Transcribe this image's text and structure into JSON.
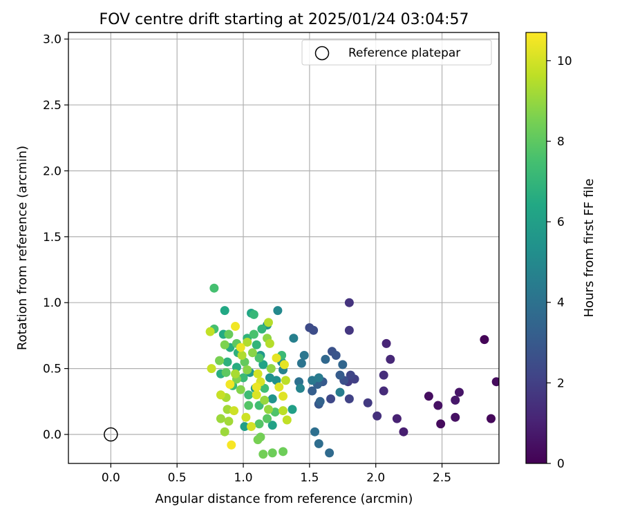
{
  "chart_data": {
    "type": "scatter",
    "title": "FOV centre drift starting at 2025/01/24 03:04:57",
    "xlabel": "Angular distance from reference (arcmin)",
    "ylabel": "Rotation from reference (arcmin)",
    "xlim": [
      -0.32,
      2.93
    ],
    "ylim": [
      -0.22,
      3.05
    ],
    "xticks": [
      0.0,
      0.5,
      1.0,
      1.5,
      2.0,
      2.5
    ],
    "xtick_labels": [
      "0.0",
      "0.5",
      "1.0",
      "1.5",
      "2.0",
      "2.5"
    ],
    "yticks": [
      0.0,
      0.5,
      1.0,
      1.5,
      2.0,
      2.5,
      3.0
    ],
    "ytick_labels": [
      "0.0",
      "0.5",
      "1.0",
      "1.5",
      "2.0",
      "2.5",
      "3.0"
    ],
    "grid": true,
    "legend": {
      "position": "top-right",
      "entries": [
        "Reference platepar"
      ]
    },
    "colorbar": {
      "label": "Hours from first FF file",
      "min": 0,
      "max": 10.7,
      "ticks": [
        0,
        2,
        4,
        6,
        8,
        10
      ],
      "tick_labels": [
        "0",
        "2",
        "4",
        "6",
        "8",
        "10"
      ],
      "colormap": "viridis"
    },
    "reference_point": {
      "x": 0.0,
      "y": 0.0,
      "name": "Reference platepar"
    },
    "series": [
      {
        "points": [
          {
            "x": 2.82,
            "y": 0.72,
            "c": 0.1
          },
          {
            "x": 2.87,
            "y": 0.12,
            "c": 0.2
          },
          {
            "x": 2.91,
            "y": 0.4,
            "c": 0.3
          },
          {
            "x": 2.49,
            "y": 0.08,
            "c": 0.3
          },
          {
            "x": 2.4,
            "y": 0.29,
            "c": 0.4
          },
          {
            "x": 2.47,
            "y": 0.22,
            "c": 0.5
          },
          {
            "x": 2.6,
            "y": 0.13,
            "c": 0.5
          },
          {
            "x": 2.63,
            "y": 0.32,
            "c": 0.6
          },
          {
            "x": 2.6,
            "y": 0.26,
            "c": 0.7
          },
          {
            "x": 2.21,
            "y": 0.02,
            "c": 0.9
          },
          {
            "x": 2.16,
            "y": 0.12,
            "c": 1.0
          },
          {
            "x": 2.08,
            "y": 0.69,
            "c": 1.1
          },
          {
            "x": 2.11,
            "y": 0.57,
            "c": 1.2
          },
          {
            "x": 2.06,
            "y": 0.33,
            "c": 1.3
          },
          {
            "x": 2.06,
            "y": 0.45,
            "c": 1.4
          },
          {
            "x": 2.01,
            "y": 0.14,
            "c": 1.5
          },
          {
            "x": 1.8,
            "y": 1.0,
            "c": 1.6
          },
          {
            "x": 1.8,
            "y": 0.79,
            "c": 1.7
          },
          {
            "x": 1.94,
            "y": 0.24,
            "c": 1.8
          },
          {
            "x": 1.79,
            "y": 0.4,
            "c": 1.9
          },
          {
            "x": 1.84,
            "y": 0.42,
            "c": 2.0
          },
          {
            "x": 1.8,
            "y": 0.27,
            "c": 2.1
          },
          {
            "x": 1.81,
            "y": 0.45,
            "c": 2.2
          },
          {
            "x": 1.66,
            "y": 0.27,
            "c": 2.3
          },
          {
            "x": 1.5,
            "y": 0.81,
            "c": 2.4
          },
          {
            "x": 1.53,
            "y": 0.79,
            "c": 2.5
          },
          {
            "x": 1.76,
            "y": 0.41,
            "c": 2.6
          },
          {
            "x": 1.67,
            "y": 0.63,
            "c": 2.7
          },
          {
            "x": 1.7,
            "y": 0.6,
            "c": 2.8
          },
          {
            "x": 1.57,
            "y": 0.23,
            "c": 2.9
          },
          {
            "x": 1.6,
            "y": 0.4,
            "c": 3.0
          },
          {
            "x": 1.73,
            "y": 0.45,
            "c": 3.1
          },
          {
            "x": 1.52,
            "y": 0.33,
            "c": 3.2
          },
          {
            "x": 1.56,
            "y": 0.38,
            "c": 3.3
          },
          {
            "x": 1.58,
            "y": 0.25,
            "c": 3.4
          },
          {
            "x": 1.75,
            "y": 0.53,
            "c": 3.5
          },
          {
            "x": 1.62,
            "y": 0.57,
            "c": 3.6
          },
          {
            "x": 1.65,
            "y": -0.14,
            "c": 3.7
          },
          {
            "x": 1.57,
            "y": -0.07,
            "c": 3.8
          },
          {
            "x": 1.54,
            "y": 0.02,
            "c": 3.9
          },
          {
            "x": 1.42,
            "y": 0.4,
            "c": 4.0
          },
          {
            "x": 1.44,
            "y": 0.54,
            "c": 4.1
          },
          {
            "x": 1.46,
            "y": 0.6,
            "c": 4.2
          },
          {
            "x": 1.52,
            "y": 0.41,
            "c": 4.3
          },
          {
            "x": 1.57,
            "y": 0.43,
            "c": 4.4
          },
          {
            "x": 1.73,
            "y": 0.32,
            "c": 4.5
          },
          {
            "x": 1.38,
            "y": 0.73,
            "c": 4.6
          },
          {
            "x": 1.3,
            "y": 0.49,
            "c": 4.7
          },
          {
            "x": 1.43,
            "y": 0.35,
            "c": 4.8
          },
          {
            "x": 1.26,
            "y": 0.94,
            "c": 5.0
          },
          {
            "x": 1.29,
            "y": 0.55,
            "c": 5.2
          },
          {
            "x": 1.25,
            "y": 0.41,
            "c": 5.3
          },
          {
            "x": 1.2,
            "y": 0.43,
            "c": 5.4
          },
          {
            "x": 1.22,
            "y": 0.27,
            "c": 5.5
          },
          {
            "x": 1.18,
            "y": 0.83,
            "c": 5.6
          },
          {
            "x": 1.13,
            "y": 0.6,
            "c": 5.7
          },
          {
            "x": 1.05,
            "y": 0.47,
            "c": 5.8
          },
          {
            "x": 1.09,
            "y": 0.35,
            "c": 5.9
          },
          {
            "x": 1.01,
            "y": 0.06,
            "c": 6.0
          },
          {
            "x": 1.37,
            "y": 0.19,
            "c": 6.0
          },
          {
            "x": 1.22,
            "y": 0.07,
            "c": 6.1
          },
          {
            "x": 1.15,
            "y": 0.53,
            "c": 6.2
          },
          {
            "x": 1.06,
            "y": 0.92,
            "c": 6.3
          },
          {
            "x": 0.86,
            "y": 0.94,
            "c": 6.4
          },
          {
            "x": 0.85,
            "y": 0.76,
            "c": 6.5
          },
          {
            "x": 0.9,
            "y": 0.66,
            "c": 6.6
          },
          {
            "x": 0.95,
            "y": 0.51,
            "c": 6.6
          },
          {
            "x": 0.83,
            "y": 0.46,
            "c": 6.7
          },
          {
            "x": 0.88,
            "y": 0.55,
            "c": 6.8
          },
          {
            "x": 0.96,
            "y": 0.62,
            "c": 6.8
          },
          {
            "x": 1.03,
            "y": 0.73,
            "c": 6.9
          },
          {
            "x": 1.1,
            "y": 0.68,
            "c": 7.0
          },
          {
            "x": 1.14,
            "y": 0.8,
            "c": 7.0
          },
          {
            "x": 1.08,
            "y": 0.91,
            "c": 7.1
          },
          {
            "x": 1.29,
            "y": 0.6,
            "c": 7.2
          },
          {
            "x": 1.0,
            "y": 0.43,
            "c": 7.2
          },
          {
            "x": 0.92,
            "y": 0.37,
            "c": 7.3
          },
          {
            "x": 1.04,
            "y": 0.3,
            "c": 7.3
          },
          {
            "x": 1.12,
            "y": 0.22,
            "c": 7.4
          },
          {
            "x": 1.16,
            "y": 0.35,
            "c": 7.4
          },
          {
            "x": 0.78,
            "y": 1.11,
            "c": 7.5
          },
          {
            "x": 0.78,
            "y": 0.8,
            "c": 7.5
          },
          {
            "x": 1.08,
            "y": 0.76,
            "c": 7.6
          },
          {
            "x": 1.12,
            "y": 0.58,
            "c": 7.6
          },
          {
            "x": 1.24,
            "y": 0.17,
            "c": 7.7
          },
          {
            "x": 1.12,
            "y": 0.08,
            "c": 7.8
          },
          {
            "x": 1.04,
            "y": 0.22,
            "c": 7.8
          },
          {
            "x": 1.18,
            "y": 0.12,
            "c": 7.9
          },
          {
            "x": 0.87,
            "y": 0.47,
            "c": 8.0
          },
          {
            "x": 0.95,
            "y": 0.69,
            "c": 8.0
          },
          {
            "x": 1.01,
            "y": 0.55,
            "c": 8.1
          },
          {
            "x": 0.89,
            "y": 0.76,
            "c": 8.2
          },
          {
            "x": 1.22,
            "y": -0.14,
            "c": 8.3
          },
          {
            "x": 1.3,
            "y": -0.13,
            "c": 8.3
          },
          {
            "x": 1.13,
            "y": -0.02,
            "c": 8.4
          },
          {
            "x": 1.15,
            "y": -0.15,
            "c": 8.4
          },
          {
            "x": 1.11,
            "y": -0.04,
            "c": 8.5
          },
          {
            "x": 0.82,
            "y": 0.56,
            "c": 8.5
          },
          {
            "x": 0.86,
            "y": 0.68,
            "c": 8.6
          },
          {
            "x": 0.95,
            "y": 0.42,
            "c": 8.6
          },
          {
            "x": 0.98,
            "y": 0.34,
            "c": 8.7
          },
          {
            "x": 1.03,
            "y": 0.49,
            "c": 8.8
          },
          {
            "x": 1.07,
            "y": 0.62,
            "c": 8.8
          },
          {
            "x": 1.18,
            "y": 0.73,
            "c": 8.9
          },
          {
            "x": 1.21,
            "y": 0.5,
            "c": 8.9
          },
          {
            "x": 1.16,
            "y": 0.26,
            "c": 9.0
          },
          {
            "x": 1.19,
            "y": 0.19,
            "c": 9.0
          },
          {
            "x": 0.83,
            "y": 0.12,
            "c": 9.1
          },
          {
            "x": 0.86,
            "y": 0.02,
            "c": 9.1
          },
          {
            "x": 0.89,
            "y": 0.1,
            "c": 9.2
          },
          {
            "x": 0.88,
            "y": 0.19,
            "c": 9.2
          },
          {
            "x": 0.87,
            "y": 0.28,
            "c": 9.3
          },
          {
            "x": 0.94,
            "y": 0.46,
            "c": 9.3
          },
          {
            "x": 0.99,
            "y": 0.6,
            "c": 9.4
          },
          {
            "x": 1.03,
            "y": 0.7,
            "c": 9.4
          },
          {
            "x": 1.19,
            "y": 0.85,
            "c": 9.5
          },
          {
            "x": 1.2,
            "y": 0.69,
            "c": 9.5
          },
          {
            "x": 1.32,
            "y": 0.41,
            "c": 9.6
          },
          {
            "x": 1.3,
            "y": 0.18,
            "c": 9.6
          },
          {
            "x": 1.33,
            "y": 0.11,
            "c": 9.7
          },
          {
            "x": 0.75,
            "y": 0.78,
            "c": 9.7
          },
          {
            "x": 0.76,
            "y": 0.5,
            "c": 9.8
          },
          {
            "x": 0.83,
            "y": 0.3,
            "c": 9.8
          },
          {
            "x": 0.93,
            "y": 0.18,
            "c": 9.9
          },
          {
            "x": 1.02,
            "y": 0.13,
            "c": 9.9
          },
          {
            "x": 1.06,
            "y": 0.06,
            "c": 10.0
          },
          {
            "x": 1.11,
            "y": 0.46,
            "c": 10.0
          },
          {
            "x": 1.13,
            "y": 0.4,
            "c": 10.1
          },
          {
            "x": 1.1,
            "y": 0.3,
            "c": 10.1
          },
          {
            "x": 1.3,
            "y": 0.29,
            "c": 10.2
          },
          {
            "x": 1.27,
            "y": 0.36,
            "c": 10.2
          },
          {
            "x": 1.31,
            "y": 0.53,
            "c": 10.3
          },
          {
            "x": 1.25,
            "y": 0.58,
            "c": 10.3
          },
          {
            "x": 1.1,
            "y": 0.36,
            "c": 10.4
          },
          {
            "x": 0.98,
            "y": 0.66,
            "c": 10.4
          },
          {
            "x": 0.94,
            "y": 0.82,
            "c": 10.5
          },
          {
            "x": 0.9,
            "y": 0.38,
            "c": 10.5
          },
          {
            "x": 0.91,
            "y": -0.08,
            "c": 10.6
          }
        ]
      }
    ]
  }
}
